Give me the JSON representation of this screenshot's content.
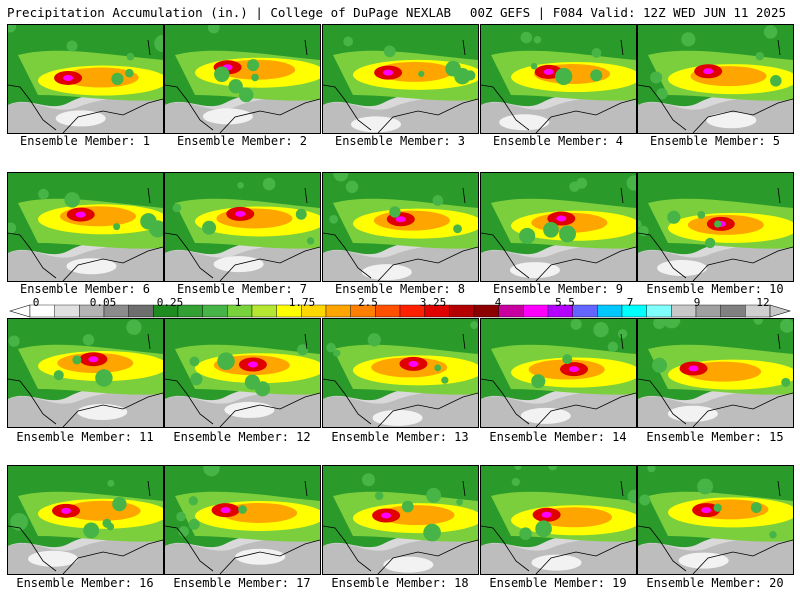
{
  "header": {
    "title": "Precipitation Accumulation (in.) | College of DuPage NEXLAB",
    "run_info": "00Z GEFS | F084 Valid: 12Z WED JUN 11 2025"
  },
  "caption_prefix": "Ensemble Member:",
  "members": [
    1,
    2,
    3,
    4,
    5,
    6,
    7,
    8,
    9,
    10,
    11,
    12,
    13,
    14,
    15,
    16,
    17,
    18,
    19,
    20
  ],
  "colorbar": {
    "labels": [
      "0",
      "0.05",
      "0.25",
      "1",
      "1.75",
      "2.5",
      "3.25",
      "4",
      "5.5",
      "7",
      "9",
      "12"
    ],
    "colors": [
      "#ffffff",
      "#e0e0e0",
      "#b4b4b4",
      "#8c8c8c",
      "#6e6e6e",
      "#1e8c1e",
      "#32a032",
      "#46b446",
      "#78d23c",
      "#b4e632",
      "#ffff00",
      "#ffd700",
      "#ffa500",
      "#ff8000",
      "#ff5000",
      "#ff2000",
      "#e00000",
      "#b40000",
      "#8c0000",
      "#c800a0",
      "#ff00ff",
      "#b400ff",
      "#6464ff",
      "#00c8ff",
      "#00ffff",
      "#80ffff",
      "#c8c8c8",
      "#a0a0a0",
      "#808080",
      "#d0d0d0"
    ]
  }
}
